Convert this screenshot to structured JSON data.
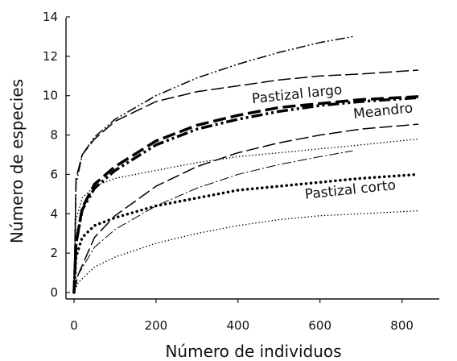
{
  "chart_data": {
    "type": "line",
    "title": "",
    "xlabel": "Número de individuos",
    "ylabel": "Número de especies",
    "xlim": [
      0,
      840
    ],
    "ylim": [
      0,
      14
    ],
    "x_ticks": [
      "0",
      "200",
      "400",
      "600",
      "800"
    ],
    "y_ticks": [
      "0",
      "2",
      "4",
      "6",
      "8",
      "10",
      "12",
      "14"
    ],
    "grid": false,
    "legend": "none",
    "series": [
      {
        "stroke": "#000000",
        "style": "dash-dot-dot",
        "width": 1.5,
        "x": [
          0,
          5,
          20,
          50,
          100,
          200,
          300,
          400,
          500,
          600,
          680
        ],
        "y": [
          0,
          5.5,
          7.0,
          7.9,
          8.8,
          10.0,
          10.9,
          11.6,
          12.2,
          12.7,
          13.0
        ]
      },
      {
        "stroke": "#000000",
        "style": "long-dash",
        "width": 1.5,
        "x": [
          0,
          5,
          20,
          50,
          100,
          200,
          300,
          400,
          500,
          600,
          700,
          840
        ],
        "y": [
          0,
          5.8,
          7.0,
          7.8,
          8.7,
          9.7,
          10.2,
          10.5,
          10.8,
          11.0,
          11.1,
          11.3
        ]
      },
      {
        "name": "Pastizal largo",
        "stroke": "#000000",
        "style": "long-dash",
        "width": 3.5,
        "x": [
          0,
          5,
          20,
          50,
          100,
          200,
          300,
          400,
          500,
          600,
          700,
          840
        ],
        "y": [
          0,
          2.5,
          4.3,
          5.5,
          6.4,
          7.7,
          8.5,
          9.0,
          9.4,
          9.6,
          9.8,
          9.95
        ]
      },
      {
        "name": "Meandro",
        "stroke": "#000000",
        "style": "dash-dot-dot",
        "width": 3.5,
        "x": [
          0,
          5,
          20,
          50,
          100,
          200,
          300,
          400,
          500,
          600,
          700,
          840
        ],
        "y": [
          0,
          2.5,
          4.2,
          5.3,
          6.2,
          7.5,
          8.3,
          8.8,
          9.2,
          9.5,
          9.7,
          9.9
        ]
      },
      {
        "stroke": "#000000",
        "style": "long-dash",
        "width": 1.5,
        "x": [
          0,
          10,
          50,
          100,
          200,
          300,
          400,
          500,
          600,
          700,
          840
        ],
        "y": [
          0,
          0.9,
          2.8,
          3.9,
          5.4,
          6.4,
          7.1,
          7.6,
          8.0,
          8.3,
          8.55
        ]
      },
      {
        "stroke": "#000000",
        "style": "dotted",
        "width": 1.5,
        "x": [
          0,
          5,
          20,
          50,
          100,
          200,
          300,
          400,
          500,
          600,
          700,
          840
        ],
        "y": [
          0,
          3.7,
          4.8,
          5.4,
          5.8,
          6.2,
          6.6,
          6.9,
          7.1,
          7.3,
          7.5,
          7.8
        ]
      },
      {
        "stroke": "#000000",
        "style": "dash-dot",
        "width": 1.0,
        "x": [
          0,
          10,
          50,
          100,
          200,
          300,
          400,
          500,
          600,
          680
        ],
        "y": [
          0,
          0.9,
          2.3,
          3.2,
          4.4,
          5.3,
          6.0,
          6.5,
          6.9,
          7.2
        ]
      },
      {
        "name": "Pastizal corto",
        "stroke": "#000000",
        "style": "dotted",
        "width": 3.5,
        "x": [
          0,
          5,
          20,
          50,
          100,
          200,
          300,
          400,
          500,
          600,
          700,
          840
        ],
        "y": [
          0,
          1.8,
          2.8,
          3.4,
          3.8,
          4.4,
          4.8,
          5.2,
          5.4,
          5.6,
          5.8,
          6.0
        ]
      },
      {
        "stroke": "#000000",
        "style": "dotted",
        "width": 1.5,
        "x": [
          0,
          10,
          50,
          100,
          200,
          300,
          400,
          500,
          600,
          700,
          840
        ],
        "y": [
          0,
          0.5,
          1.3,
          1.8,
          2.5,
          3.0,
          3.4,
          3.7,
          3.9,
          4.0,
          4.15
        ]
      }
    ],
    "annotations": [
      {
        "text": "Pastizal largo",
        "x": 545,
        "y": 9.85
      },
      {
        "text": "Meandro",
        "x": 755,
        "y": 9.0
      },
      {
        "text": "Pastizal corto",
        "x": 675,
        "y": 5.0
      }
    ]
  }
}
